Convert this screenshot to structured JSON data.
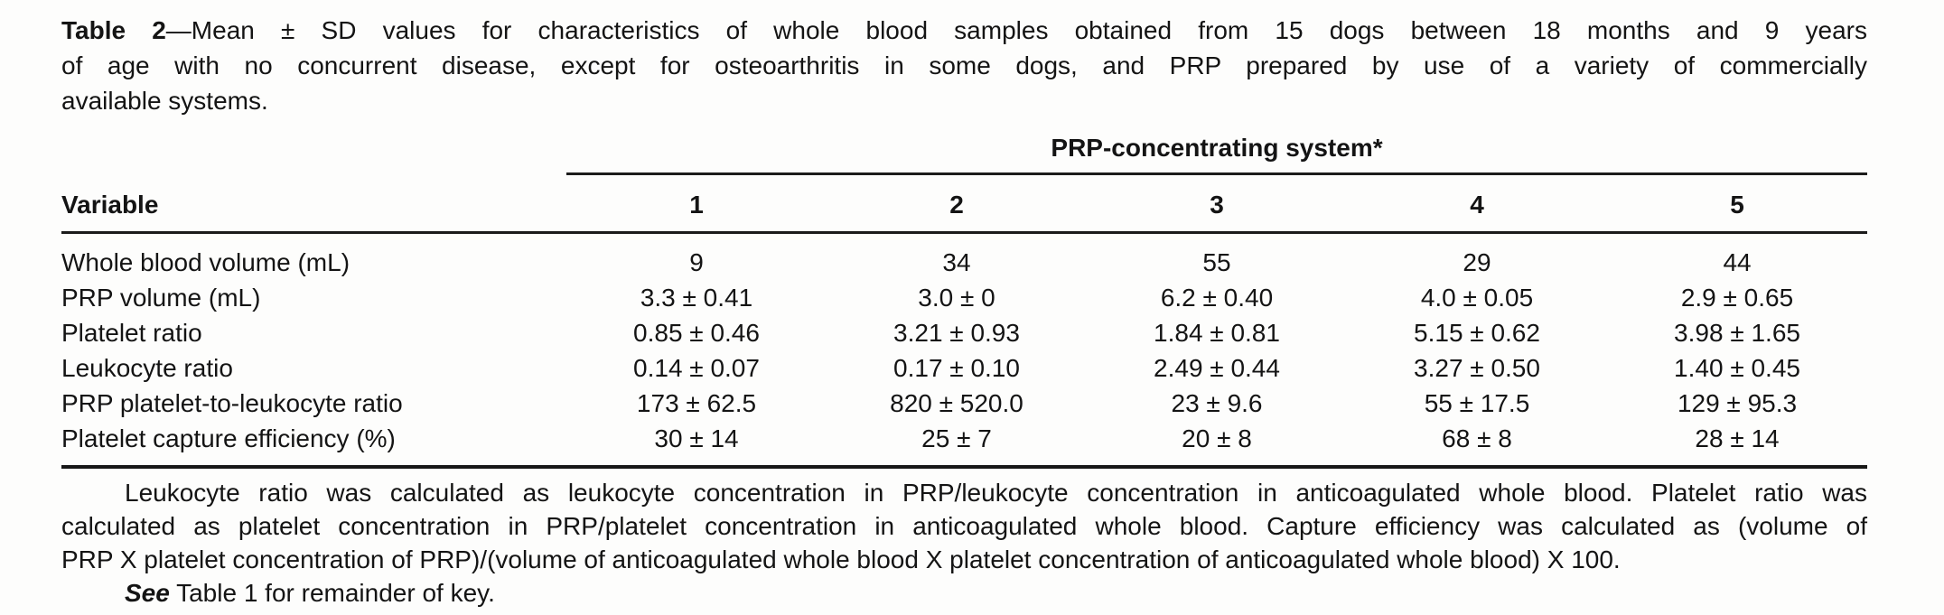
{
  "caption": {
    "label": "Table 2",
    "lines": [
      "—Mean ± SD values for characteristics of whole blood samples obtained from 15 dogs between 18 months and 9 years",
      "of age with no concurrent disease, except for osteoarthritis in some dogs, and PRP prepared by use of a variety of commercially",
      "available systems."
    ]
  },
  "table": {
    "spanner": "PRP-concentrating system*",
    "variable_header": "Variable",
    "system_headers": [
      "1",
      "2",
      "3",
      "4",
      "5"
    ],
    "rows": [
      {
        "variable": "Whole blood volume (mL)",
        "values": [
          "9",
          "34",
          "55",
          "29",
          "44"
        ]
      },
      {
        "variable": "PRP volume (mL)",
        "values": [
          "3.3 ± 0.41",
          "3.0 ± 0",
          "6.2 ± 0.40",
          "4.0 ± 0.05",
          "2.9 ± 0.65"
        ]
      },
      {
        "variable": "Platelet ratio",
        "values": [
          "0.85 ± 0.46",
          "3.21 ± 0.93",
          "1.84 ± 0.81",
          "5.15 ± 0.62",
          "3.98 ± 1.65"
        ]
      },
      {
        "variable": "Leukocyte ratio",
        "values": [
          "0.14 ± 0.07",
          "0.17 ± 0.10",
          "2.49 ± 0.44",
          "3.27 ± 0.50",
          "1.40 ± 0.45"
        ]
      },
      {
        "variable": "PRP platelet-to-leukocyte ratio",
        "values": [
          "173 ± 62.5",
          "820 ± 520.0",
          "23 ± 9.6",
          "55 ± 17.5",
          "129 ± 95.3"
        ]
      },
      {
        "variable": "Platelet capture efficiency (%)",
        "values": [
          "30 ± 14",
          "25 ± 7",
          "20 ± 8",
          "68 ± 8",
          "28 ± 14"
        ]
      }
    ]
  },
  "footnote": {
    "lines": [
      "Leukocyte ratio was calculated as leukocyte concentration in PRP/leukocyte concentration in anticoagulated whole blood. Platelet ratio was",
      "calculated as platelet concentration in PRP/platelet concentration in anticoagulated whole blood. Capture efficiency was calculated as (volume of",
      "PRP X platelet concentration of PRP)/(volume of anticoagulated whole blood X platelet concentration of anticoagulated whole blood) X 100."
    ],
    "see_label": "See",
    "see_text": " Table 1 for remainder of key."
  }
}
